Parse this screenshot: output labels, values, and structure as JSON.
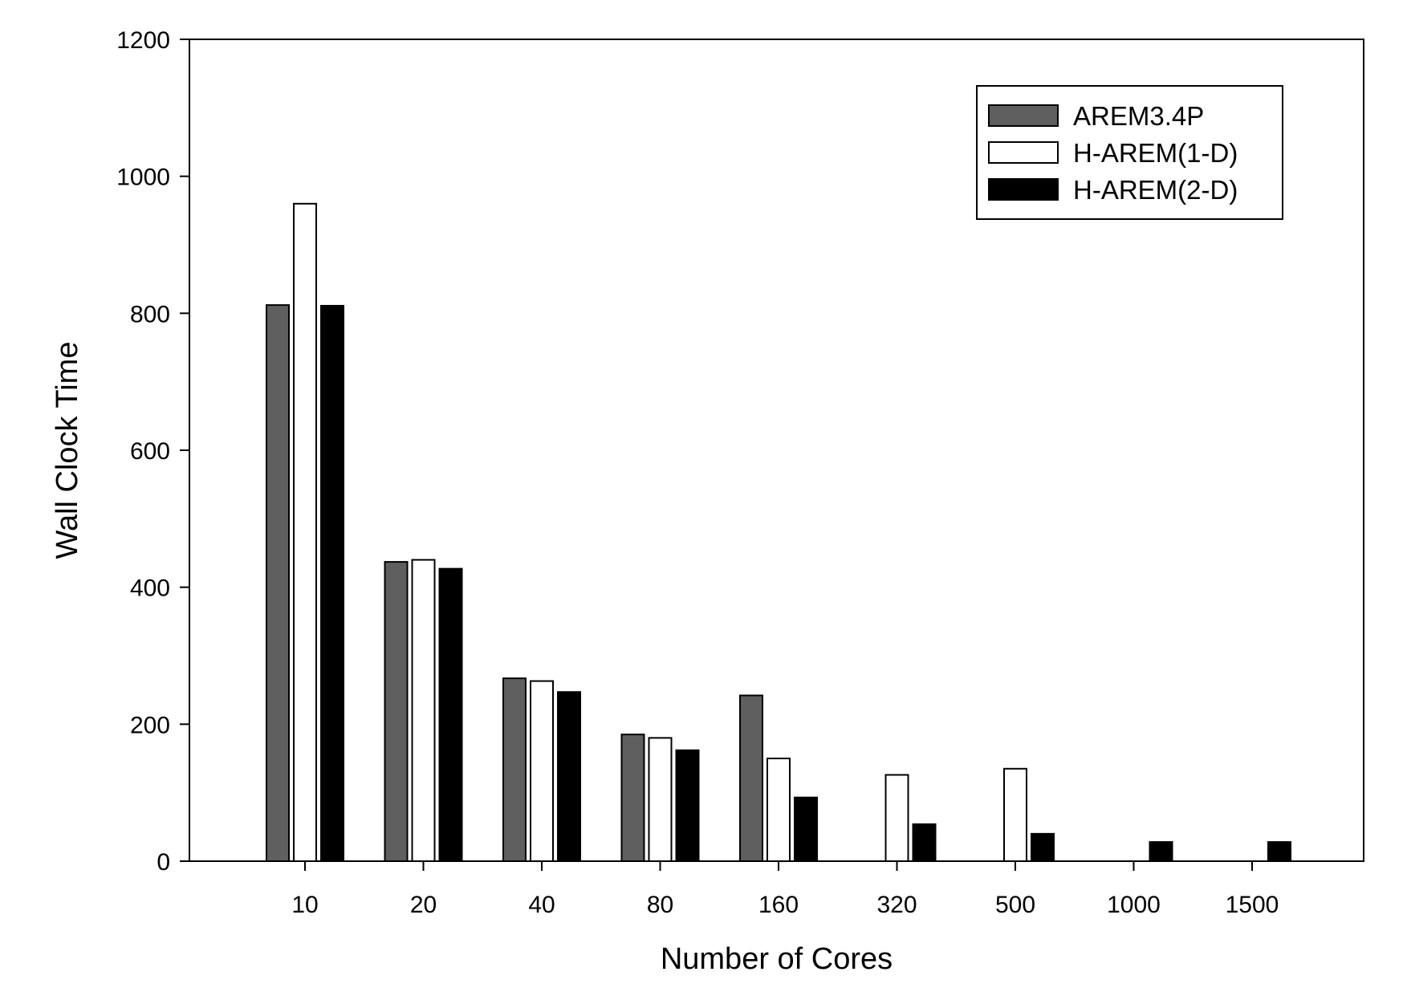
{
  "chart_data": {
    "type": "bar",
    "title": "",
    "xlabel": "Number of Cores",
    "ylabel": "Wall Clock Time",
    "categories": [
      "10",
      "20",
      "40",
      "80",
      "160",
      "320",
      "500",
      "1000",
      "1500"
    ],
    "ylim": [
      0,
      1200
    ],
    "yticks": [
      0,
      200,
      400,
      600,
      800,
      1000,
      1200
    ],
    "grid": false,
    "legend_position": "top-right",
    "series": [
      {
        "name": "AREM3.4P",
        "color": "#5f5f5f",
        "values": [
          812,
          437,
          267,
          185,
          242,
          null,
          null,
          null,
          null
        ]
      },
      {
        "name": "H-AREM(1-D)",
        "color": "#ffffff",
        "values": [
          960,
          440,
          263,
          180,
          150,
          126,
          135,
          null,
          null
        ]
      },
      {
        "name": "H-AREM(2-D)",
        "color": "#000000",
        "values": [
          811,
          427,
          247,
          162,
          93,
          54,
          40,
          28,
          28
        ]
      }
    ]
  }
}
